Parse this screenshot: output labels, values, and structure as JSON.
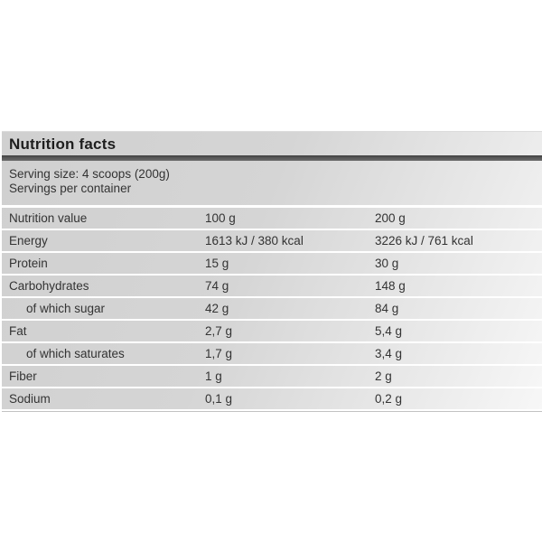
{
  "panel": {
    "title": "Nutrition facts",
    "serving_size": "Serving size: 4 scoops (200g)",
    "servings_per_container": "Servings per container"
  },
  "table": {
    "header": {
      "label": "Nutrition value",
      "col_100g": "100 g",
      "col_200g": "200 g"
    },
    "rows": [
      {
        "label": "Energy",
        "per_100g": "1613 kJ / 380 kcal",
        "per_200g": "3226 kJ / 761 kcal",
        "indent": false
      },
      {
        "label": "Protein",
        "per_100g": "15 g",
        "per_200g": "30 g",
        "indent": false
      },
      {
        "label": "Carbohydrates",
        "per_100g": "74 g",
        "per_200g": "148 g",
        "indent": false
      },
      {
        "label": "of which sugar",
        "per_100g": "42 g",
        "per_200g": "84 g",
        "indent": true
      },
      {
        "label": "Fat",
        "per_100g": "2,7 g",
        "per_200g": "5,4 g",
        "indent": false
      },
      {
        "label": "of which saturates",
        "per_100g": "1,7 g",
        "per_200g": "3,4 g",
        "indent": true
      },
      {
        "label": "Fiber",
        "per_100g": "1 g",
        "per_200g": "2 g",
        "indent": false
      },
      {
        "label": "Sodium",
        "per_100g": "0,1 g",
        "per_200g": "0,2 g",
        "indent": false
      }
    ]
  },
  "colors": {
    "panel_background": "#d3d3d3",
    "divider_bar": "#4a4a4a",
    "row_separator": "#ffffff",
    "text": "#333333",
    "panel_bottom_border": "#c2c2c2",
    "page_background": "#ffffff"
  }
}
